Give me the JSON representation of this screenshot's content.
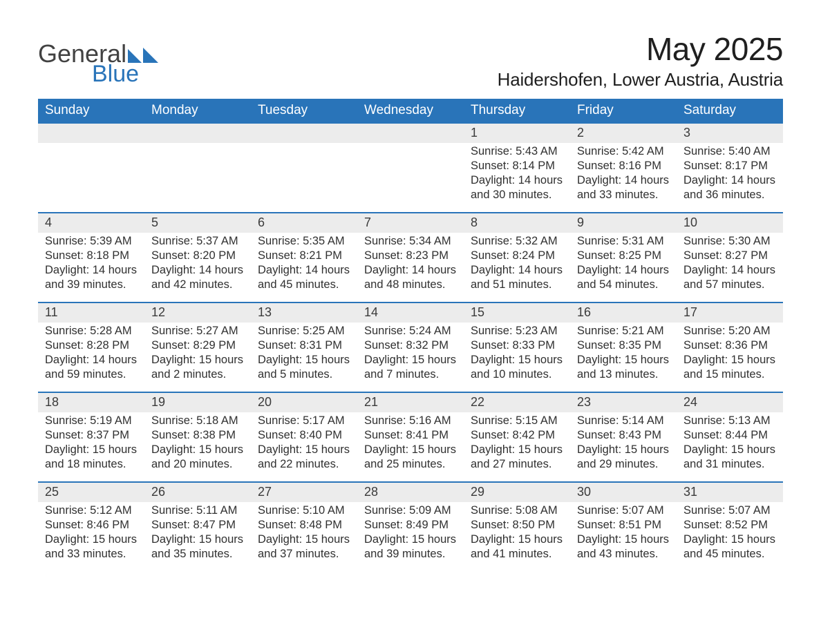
{
  "logo": {
    "general": "General",
    "blue": "Blue"
  },
  "colors": {
    "accent": "#2974b9",
    "grey_header": "#ececec",
    "text": "#303030",
    "white": "#ffffff"
  },
  "title": "May 2025",
  "location": "Haidershofen, Lower Austria, Austria",
  "days_of_week": [
    "Sunday",
    "Monday",
    "Tuesday",
    "Wednesday",
    "Thursday",
    "Friday",
    "Saturday"
  ],
  "weeks": [
    [
      {
        "num": "",
        "lines": []
      },
      {
        "num": "",
        "lines": []
      },
      {
        "num": "",
        "lines": []
      },
      {
        "num": "",
        "lines": []
      },
      {
        "num": "1",
        "lines": [
          "Sunrise: 5:43 AM",
          "Sunset: 8:14 PM",
          "Daylight: 14 hours",
          "and 30 minutes."
        ]
      },
      {
        "num": "2",
        "lines": [
          "Sunrise: 5:42 AM",
          "Sunset: 8:16 PM",
          "Daylight: 14 hours",
          "and 33 minutes."
        ]
      },
      {
        "num": "3",
        "lines": [
          "Sunrise: 5:40 AM",
          "Sunset: 8:17 PM",
          "Daylight: 14 hours",
          "and 36 minutes."
        ]
      }
    ],
    [
      {
        "num": "4",
        "lines": [
          "Sunrise: 5:39 AM",
          "Sunset: 8:18 PM",
          "Daylight: 14 hours",
          "and 39 minutes."
        ]
      },
      {
        "num": "5",
        "lines": [
          "Sunrise: 5:37 AM",
          "Sunset: 8:20 PM",
          "Daylight: 14 hours",
          "and 42 minutes."
        ]
      },
      {
        "num": "6",
        "lines": [
          "Sunrise: 5:35 AM",
          "Sunset: 8:21 PM",
          "Daylight: 14 hours",
          "and 45 minutes."
        ]
      },
      {
        "num": "7",
        "lines": [
          "Sunrise: 5:34 AM",
          "Sunset: 8:23 PM",
          "Daylight: 14 hours",
          "and 48 minutes."
        ]
      },
      {
        "num": "8",
        "lines": [
          "Sunrise: 5:32 AM",
          "Sunset: 8:24 PM",
          "Daylight: 14 hours",
          "and 51 minutes."
        ]
      },
      {
        "num": "9",
        "lines": [
          "Sunrise: 5:31 AM",
          "Sunset: 8:25 PM",
          "Daylight: 14 hours",
          "and 54 minutes."
        ]
      },
      {
        "num": "10",
        "lines": [
          "Sunrise: 5:30 AM",
          "Sunset: 8:27 PM",
          "Daylight: 14 hours",
          "and 57 minutes."
        ]
      }
    ],
    [
      {
        "num": "11",
        "lines": [
          "Sunrise: 5:28 AM",
          "Sunset: 8:28 PM",
          "Daylight: 14 hours",
          "and 59 minutes."
        ]
      },
      {
        "num": "12",
        "lines": [
          "Sunrise: 5:27 AM",
          "Sunset: 8:29 PM",
          "Daylight: 15 hours",
          "and 2 minutes."
        ]
      },
      {
        "num": "13",
        "lines": [
          "Sunrise: 5:25 AM",
          "Sunset: 8:31 PM",
          "Daylight: 15 hours",
          "and 5 minutes."
        ]
      },
      {
        "num": "14",
        "lines": [
          "Sunrise: 5:24 AM",
          "Sunset: 8:32 PM",
          "Daylight: 15 hours",
          "and 7 minutes."
        ]
      },
      {
        "num": "15",
        "lines": [
          "Sunrise: 5:23 AM",
          "Sunset: 8:33 PM",
          "Daylight: 15 hours",
          "and 10 minutes."
        ]
      },
      {
        "num": "16",
        "lines": [
          "Sunrise: 5:21 AM",
          "Sunset: 8:35 PM",
          "Daylight: 15 hours",
          "and 13 minutes."
        ]
      },
      {
        "num": "17",
        "lines": [
          "Sunrise: 5:20 AM",
          "Sunset: 8:36 PM",
          "Daylight: 15 hours",
          "and 15 minutes."
        ]
      }
    ],
    [
      {
        "num": "18",
        "lines": [
          "Sunrise: 5:19 AM",
          "Sunset: 8:37 PM",
          "Daylight: 15 hours",
          "and 18 minutes."
        ]
      },
      {
        "num": "19",
        "lines": [
          "Sunrise: 5:18 AM",
          "Sunset: 8:38 PM",
          "Daylight: 15 hours",
          "and 20 minutes."
        ]
      },
      {
        "num": "20",
        "lines": [
          "Sunrise: 5:17 AM",
          "Sunset: 8:40 PM",
          "Daylight: 15 hours",
          "and 22 minutes."
        ]
      },
      {
        "num": "21",
        "lines": [
          "Sunrise: 5:16 AM",
          "Sunset: 8:41 PM",
          "Daylight: 15 hours",
          "and 25 minutes."
        ]
      },
      {
        "num": "22",
        "lines": [
          "Sunrise: 5:15 AM",
          "Sunset: 8:42 PM",
          "Daylight: 15 hours",
          "and 27 minutes."
        ]
      },
      {
        "num": "23",
        "lines": [
          "Sunrise: 5:14 AM",
          "Sunset: 8:43 PM",
          "Daylight: 15 hours",
          "and 29 minutes."
        ]
      },
      {
        "num": "24",
        "lines": [
          "Sunrise: 5:13 AM",
          "Sunset: 8:44 PM",
          "Daylight: 15 hours",
          "and 31 minutes."
        ]
      }
    ],
    [
      {
        "num": "25",
        "lines": [
          "Sunrise: 5:12 AM",
          "Sunset: 8:46 PM",
          "Daylight: 15 hours",
          "and 33 minutes."
        ]
      },
      {
        "num": "26",
        "lines": [
          "Sunrise: 5:11 AM",
          "Sunset: 8:47 PM",
          "Daylight: 15 hours",
          "and 35 minutes."
        ]
      },
      {
        "num": "27",
        "lines": [
          "Sunrise: 5:10 AM",
          "Sunset: 8:48 PM",
          "Daylight: 15 hours",
          "and 37 minutes."
        ]
      },
      {
        "num": "28",
        "lines": [
          "Sunrise: 5:09 AM",
          "Sunset: 8:49 PM",
          "Daylight: 15 hours",
          "and 39 minutes."
        ]
      },
      {
        "num": "29",
        "lines": [
          "Sunrise: 5:08 AM",
          "Sunset: 8:50 PM",
          "Daylight: 15 hours",
          "and 41 minutes."
        ]
      },
      {
        "num": "30",
        "lines": [
          "Sunrise: 5:07 AM",
          "Sunset: 8:51 PM",
          "Daylight: 15 hours",
          "and 43 minutes."
        ]
      },
      {
        "num": "31",
        "lines": [
          "Sunrise: 5:07 AM",
          "Sunset: 8:52 PM",
          "Daylight: 15 hours",
          "and 45 minutes."
        ]
      }
    ]
  ]
}
